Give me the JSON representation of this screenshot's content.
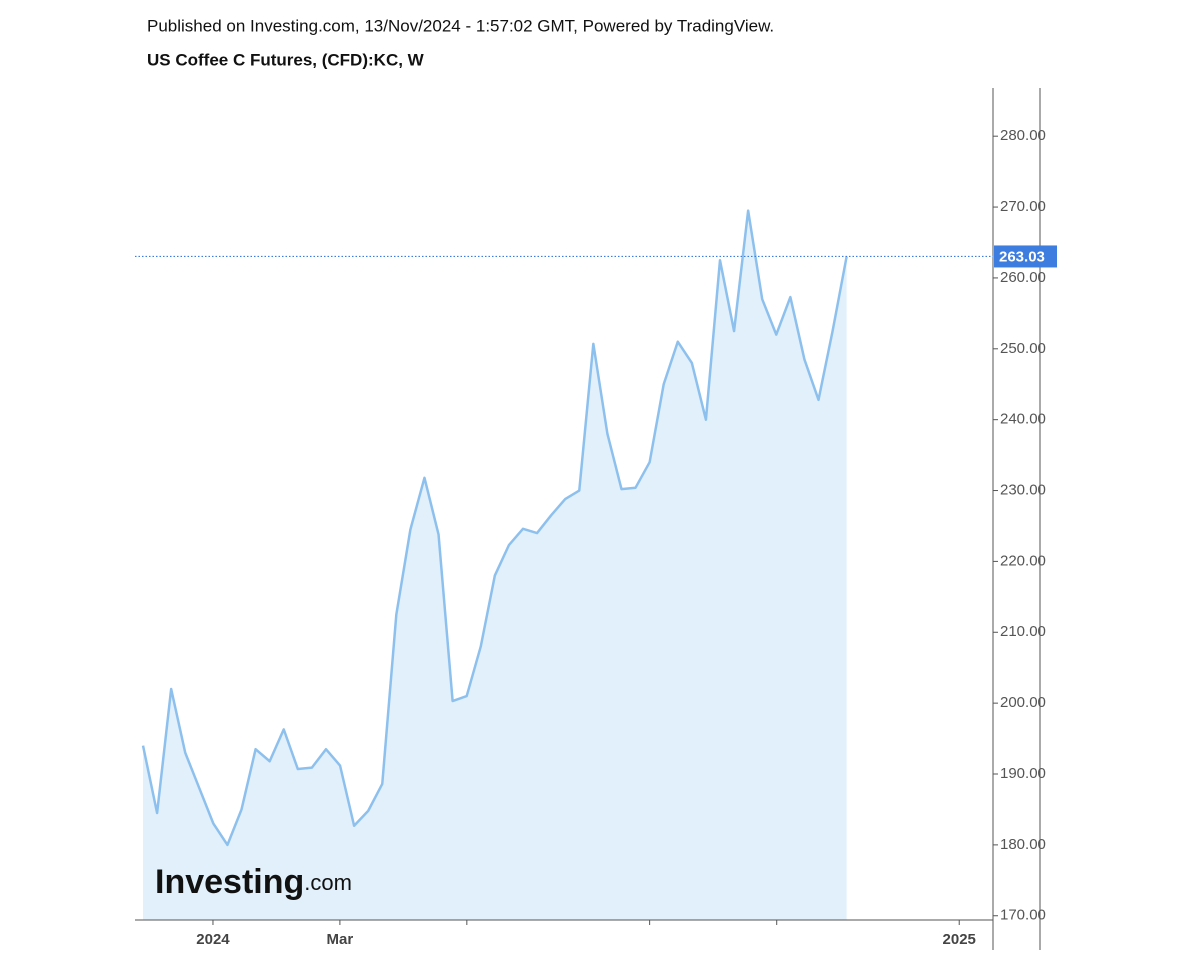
{
  "chart_data": {
    "type": "area",
    "title": "Published on Investing.com, 13/Nov/2024 - 1:57:02 GMT, Powered by TradingView.",
    "subtitle": "US Coffee C Futures, (CFD):KC, W",
    "logo": "Investing",
    "logo_suffix": ".com",
    "categories": [
      null,
      null,
      null,
      null,
      null,
      null,
      null,
      null,
      null,
      null,
      null,
      null,
      null,
      null,
      null,
      null,
      null,
      null,
      null,
      null,
      null,
      null,
      null,
      null,
      null,
      null,
      null,
      null,
      null,
      null,
      null,
      null,
      null,
      null,
      null,
      null,
      null,
      null,
      null,
      null,
      null,
      null,
      null,
      null,
      null,
      null,
      null,
      null,
      null,
      null,
      null
    ],
    "values": [
      194,
      184.5,
      202,
      193,
      188,
      183,
      180,
      185,
      193.5,
      191.8,
      196.3,
      190.7,
      190.9,
      193.5,
      191.2,
      182.7,
      184.8,
      188.6,
      212.5,
      224.5,
      231.8,
      223.8,
      200.3,
      201,
      208,
      218,
      222.3,
      224.6,
      224,
      226.5,
      228.8,
      230,
      250.7,
      238,
      230.2,
      230.4,
      234,
      245,
      251,
      248,
      240,
      262.5,
      252.5,
      269.5,
      257,
      252,
      257.3,
      248.5,
      242.8,
      252.5,
      263.03
    ],
    "color": "#8ec0ee",
    "fill": "#e1f0fa",
    "last_price": 263.03,
    "last_price_color": "#3d7de0",
    "xlim": [
      -0.57,
      60.4
    ],
    "xticks": [
      {
        "value": 4.97,
        "label": "2024"
      },
      {
        "value": 13.99,
        "label": "Mar"
      },
      {
        "value": 58,
        "label": "2025"
      }
    ],
    "x_minor_ticks": [
      23.01,
      36,
      45.03
    ],
    "ylim": [
      169.4,
      286.8
    ],
    "yticks": [
      {
        "value": 170,
        "label": "170.00"
      },
      {
        "value": 180,
        "label": "180.00"
      },
      {
        "value": 190,
        "label": "190.00"
      },
      {
        "value": 200,
        "label": "200.00"
      },
      {
        "value": 210,
        "label": "210.00"
      },
      {
        "value": 220,
        "label": "220.00"
      },
      {
        "value": 230,
        "label": "230.00"
      },
      {
        "value": 240,
        "label": "240.00"
      },
      {
        "value": 250,
        "label": "250.00"
      },
      {
        "value": 260,
        "label": "260.00"
      },
      {
        "value": 270,
        "label": "270.00"
      },
      {
        "value": 280,
        "label": "280.00"
      }
    ]
  }
}
